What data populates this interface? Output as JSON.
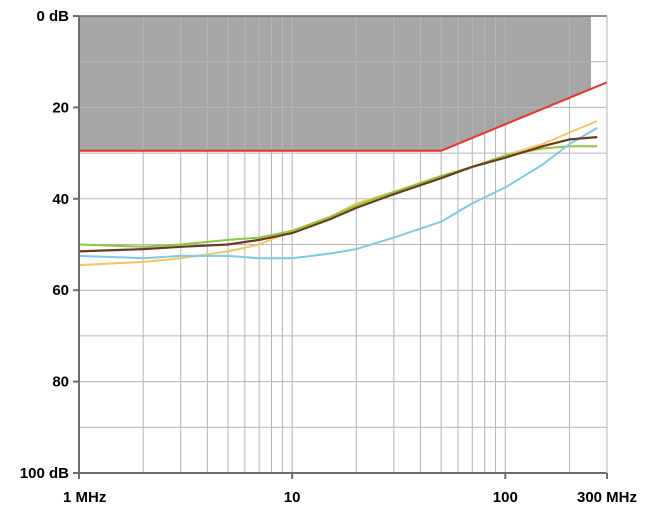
{
  "chart_data": {
    "type": "line",
    "x_scale": "log",
    "y_direction": "inverted",
    "xlim": [
      1,
      300
    ],
    "ylim": [
      0,
      100
    ],
    "x_ticks": [
      {
        "value": 1,
        "label": "1 MHz"
      },
      {
        "value": 10,
        "label": "10"
      },
      {
        "value": 100,
        "label": "100"
      },
      {
        "value": 300,
        "label": "300 MHz"
      }
    ],
    "y_ticks": [
      {
        "value": 0,
        "label": "0 dB"
      },
      {
        "value": 20,
        "label": "20"
      },
      {
        "value": 40,
        "label": "40"
      },
      {
        "value": 60,
        "label": "60"
      },
      {
        "value": 80,
        "label": "80"
      },
      {
        "value": 100,
        "label": "100 dB"
      }
    ],
    "grid": true,
    "shaded_region": {
      "color": "#a6a6a6",
      "x_range": [
        1,
        300
      ],
      "lower_boundary": [
        [
          1,
          29.5
        ],
        [
          50,
          29.5
        ],
        [
          300,
          14.5
        ]
      ]
    },
    "series": [
      {
        "color": "#e8352a",
        "width": 2,
        "points": [
          [
            1,
            29.5
          ],
          [
            50,
            29.5
          ],
          [
            300,
            14.5
          ]
        ]
      },
      {
        "color": "#f5c560",
        "width": 2,
        "points": [
          [
            1,
            54.5
          ],
          [
            2,
            53.8
          ],
          [
            3,
            53
          ],
          [
            5,
            51.5
          ],
          [
            7,
            50
          ],
          [
            10,
            47
          ],
          [
            15,
            44
          ],
          [
            20,
            41
          ],
          [
            30,
            38.5
          ],
          [
            50,
            35.5
          ],
          [
            70,
            33
          ],
          [
            100,
            30.5
          ],
          [
            150,
            28
          ],
          [
            200,
            25.5
          ],
          [
            270,
            23
          ]
        ]
      },
      {
        "color": "#8dc63f",
        "width": 2,
        "points": [
          [
            1,
            50
          ],
          [
            2,
            50.5
          ],
          [
            3,
            50
          ],
          [
            5,
            49
          ],
          [
            7,
            48.5
          ],
          [
            10,
            47
          ],
          [
            15,
            44
          ],
          [
            20,
            41.5
          ],
          [
            30,
            38.5
          ],
          [
            50,
            35
          ],
          [
            70,
            33
          ],
          [
            100,
            30.5
          ],
          [
            150,
            29
          ],
          [
            200,
            28.5
          ],
          [
            270,
            28.5
          ]
        ]
      },
      {
        "color": "#7ccbe3",
        "width": 2,
        "points": [
          [
            1,
            52.5
          ],
          [
            2,
            53
          ],
          [
            3,
            52.5
          ],
          [
            5,
            52.5
          ],
          [
            7,
            53
          ],
          [
            10,
            53
          ],
          [
            15,
            52
          ],
          [
            20,
            51
          ],
          [
            30,
            48.5
          ],
          [
            50,
            45
          ],
          [
            70,
            41
          ],
          [
            100,
            37.5
          ],
          [
            150,
            32.5
          ],
          [
            200,
            28
          ],
          [
            270,
            24.5
          ]
        ]
      },
      {
        "color": "#6b3a1f",
        "width": 2.2,
        "points": [
          [
            1,
            51.5
          ],
          [
            2,
            51
          ],
          [
            3,
            50.5
          ],
          [
            5,
            50
          ],
          [
            7,
            49
          ],
          [
            10,
            47.5
          ],
          [
            15,
            44.5
          ],
          [
            20,
            42
          ],
          [
            30,
            39
          ],
          [
            50,
            35.5
          ],
          [
            70,
            33
          ],
          [
            100,
            31
          ],
          [
            150,
            28.5
          ],
          [
            200,
            27
          ],
          [
            270,
            26.5
          ]
        ]
      }
    ]
  }
}
